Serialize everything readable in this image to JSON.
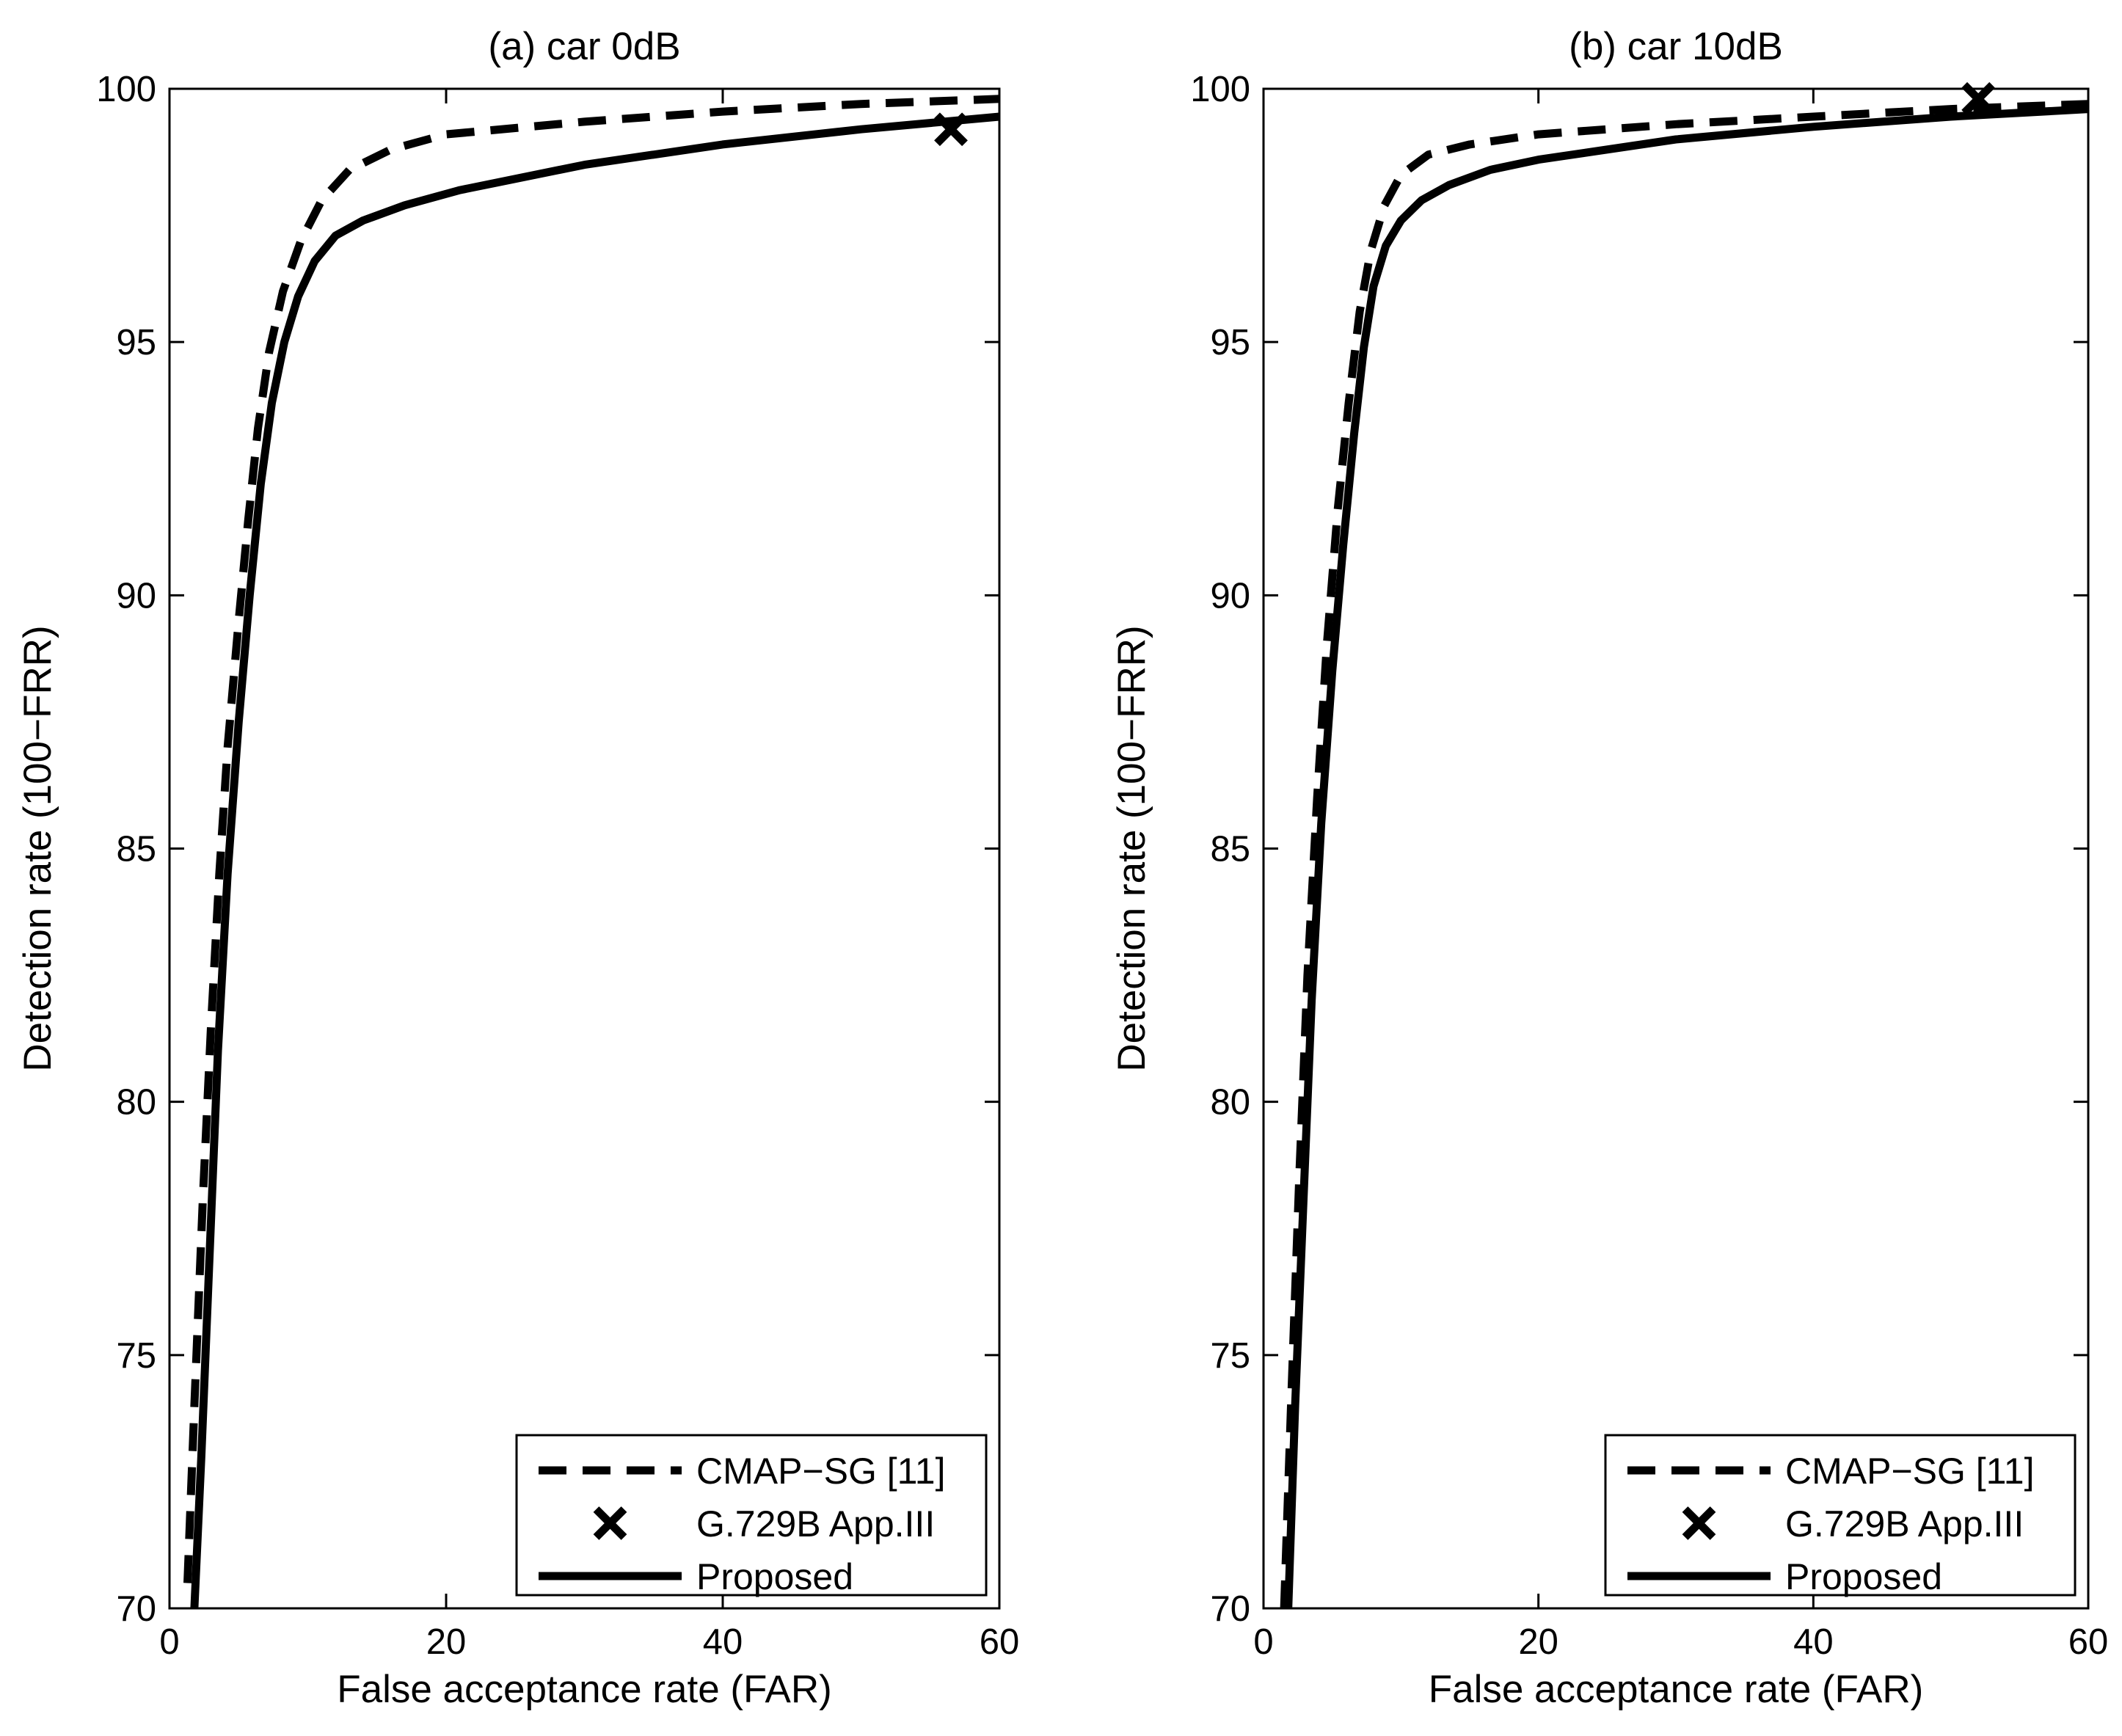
{
  "figure": {
    "background": "#ffffff",
    "line_color": "#000000"
  },
  "chart_data": [
    {
      "type": "line",
      "title": "(a) car 0dB",
      "xlabel": "False acceptance rate (FAR)",
      "ylabel": "Detection rate (100−FRR)",
      "xlim": [
        0,
        60
      ],
      "ylim": [
        70,
        100
      ],
      "xticks": [
        0,
        20,
        40,
        60
      ],
      "yticks": [
        70,
        75,
        80,
        85,
        90,
        95,
        100
      ],
      "grid": false,
      "legend_position": "bottom-right",
      "series": [
        {
          "name": "CMAP−SG [11]",
          "style": "dashed",
          "x": [
            1.3,
            1.8,
            2.4,
            3.0,
            3.6,
            4.2,
            5.0,
            5.7,
            6.4,
            7.2,
            8.2,
            9.5,
            11.0,
            13.0,
            16.0,
            20.0,
            30.0,
            40.0,
            50.0,
            60.0
          ],
          "y": [
            70.5,
            74.0,
            78.0,
            81.5,
            84.5,
            87.0,
            89.5,
            91.5,
            93.3,
            94.8,
            96.0,
            97.0,
            97.8,
            98.4,
            98.8,
            99.1,
            99.35,
            99.55,
            99.7,
            99.8
          ]
        },
        {
          "name": "Proposed",
          "style": "solid",
          "x": [
            1.8,
            2.3,
            2.9,
            3.5,
            4.2,
            5.0,
            5.8,
            6.6,
            7.4,
            8.3,
            9.3,
            10.5,
            12.0,
            14.0,
            17.0,
            21.0,
            30.0,
            40.0,
            50.0,
            60.0
          ],
          "y": [
            70.0,
            73.0,
            77.0,
            81.0,
            84.5,
            87.5,
            90.0,
            92.2,
            93.8,
            95.0,
            95.9,
            96.6,
            97.1,
            97.4,
            97.7,
            98.0,
            98.5,
            98.9,
            99.2,
            99.45
          ]
        }
      ],
      "markers": [
        {
          "name": "G.729B App.III",
          "symbol": "x",
          "x": [
            56.5
          ],
          "y": [
            99.2
          ]
        }
      ]
    },
    {
      "type": "line",
      "title": "(b) car 10dB",
      "xlabel": "False acceptance rate (FAR)",
      "ylabel": "Detection rate (100−FRR)",
      "xlim": [
        0,
        60
      ],
      "ylim": [
        70,
        100
      ],
      "xticks": [
        0,
        20,
        40,
        60
      ],
      "yticks": [
        70,
        75,
        80,
        85,
        90,
        95,
        100
      ],
      "grid": false,
      "legend_position": "bottom-right",
      "series": [
        {
          "name": "CMAP−SG [11]",
          "style": "dashed",
          "x": [
            1.5,
            2.0,
            2.6,
            3.2,
            3.9,
            4.6,
            5.4,
            6.2,
            7.0,
            7.8,
            8.8,
            10.0,
            12.0,
            15.0,
            20.0,
            30.0,
            40.0,
            50.0,
            60.0
          ],
          "y": [
            70.0,
            74.0,
            78.5,
            82.5,
            86.0,
            89.0,
            91.7,
            93.8,
            95.6,
            96.8,
            97.7,
            98.3,
            98.7,
            98.9,
            99.1,
            99.3,
            99.45,
            99.6,
            99.7
          ]
        },
        {
          "name": "Proposed",
          "style": "solid",
          "x": [
            1.8,
            2.3,
            2.9,
            3.5,
            4.2,
            5.0,
            5.8,
            6.6,
            7.3,
            8.0,
            8.9,
            10.0,
            11.5,
            13.5,
            16.5,
            20.0,
            30.0,
            40.0,
            50.0,
            60.0
          ],
          "y": [
            70.0,
            74.0,
            78.0,
            82.0,
            85.5,
            88.5,
            91.0,
            93.2,
            94.9,
            96.1,
            96.9,
            97.4,
            97.8,
            98.1,
            98.4,
            98.6,
            99.0,
            99.25,
            99.45,
            99.6
          ]
        }
      ],
      "markers": [
        {
          "name": "G.729B App.III",
          "symbol": "x",
          "x": [
            52.0
          ],
          "y": [
            99.8
          ]
        }
      ]
    }
  ]
}
